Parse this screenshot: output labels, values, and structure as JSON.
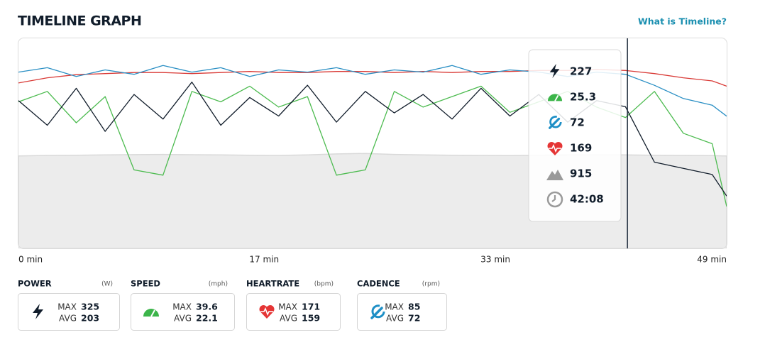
{
  "header": {
    "title": "TIMELINE GRAPH",
    "link": "What is Timeline?"
  },
  "chart_data": {
    "type": "line",
    "x": [
      0,
      2,
      4,
      6,
      8,
      10,
      12,
      14,
      16,
      18,
      20,
      22,
      24,
      26,
      28,
      30,
      32,
      34,
      36,
      38,
      40,
      42,
      44,
      46,
      48,
      49
    ],
    "xlim": [
      0,
      49
    ],
    "xticks": [
      {
        "value": 0,
        "label": "0 min"
      },
      {
        "value": 17,
        "label": "17 min"
      },
      {
        "value": 33,
        "label": "33 min"
      },
      {
        "value": 49,
        "label": "49 min"
      }
    ],
    "series": [
      {
        "color": "#d9d9d9",
        "style": "area",
        "ylim": [
          0,
          2050
        ],
        "values": [
          905,
          910,
          912,
          915,
          918,
          920,
          917,
          915,
          912,
          910,
          915,
          925,
          930,
          920,
          915,
          912,
          910,
          908,
          912,
          915,
          917,
          915,
          912,
          910,
          908,
          905
        ]
      },
      {
        "color": "#d93a36",
        "style": "line",
        "ylim": [
          0,
          200
        ],
        "values": [
          158,
          163,
          166,
          167,
          168,
          168,
          167,
          168,
          169,
          168,
          168,
          169,
          169,
          168,
          169,
          168,
          169,
          169,
          170,
          170,
          171,
          170,
          167,
          163,
          160,
          155
        ]
      },
      {
        "color": "#2a8fc4",
        "style": "line",
        "ylim": [
          0,
          95
        ],
        "values": [
          80,
          82,
          78,
          81,
          79,
          83,
          80,
          82,
          78,
          81,
          80,
          82,
          79,
          81,
          80,
          83,
          79,
          81,
          80,
          78,
          80,
          79,
          74,
          68,
          65,
          60
        ]
      },
      {
        "color": "#4cbb4f",
        "style": "line",
        "ylim": [
          0,
          40
        ],
        "values": [
          28,
          30,
          24,
          29,
          15,
          14,
          30,
          28,
          31,
          27,
          29,
          14,
          15,
          30,
          27,
          29,
          31,
          26,
          28,
          30,
          27,
          25,
          30,
          22,
          20,
          8
        ]
      },
      {
        "color": "#111d2b",
        "style": "line",
        "ylim": [
          0,
          340
        ],
        "values": [
          240,
          200,
          260,
          190,
          250,
          210,
          270,
          200,
          245,
          215,
          265,
          205,
          255,
          220,
          250,
          210,
          260,
          215,
          250,
          205,
          240,
          230,
          140,
          130,
          120,
          85
        ]
      }
    ],
    "cursor": {
      "time": "42:08",
      "values": [
        227,
        25.3,
        72,
        169,
        915
      ]
    }
  },
  "stats": [
    {
      "title": "POWER",
      "unit": "(W)",
      "max_label": "MAX",
      "max": 325,
      "avg_label": "AVG",
      "avg": 203
    },
    {
      "title": "SPEED",
      "unit": "(mph)",
      "max_label": "MAX",
      "max": 39.6,
      "avg_label": "AVG",
      "avg": 22.1
    },
    {
      "title": "HEARTRATE",
      "unit": "(bpm)",
      "max_label": "MAX",
      "max": 171,
      "avg_label": "AVG",
      "avg": 159
    },
    {
      "title": "CADENCE",
      "unit": "(rpm)",
      "max_label": "MAX",
      "max": 85,
      "avg_label": "AVG",
      "avg": 72
    }
  ]
}
